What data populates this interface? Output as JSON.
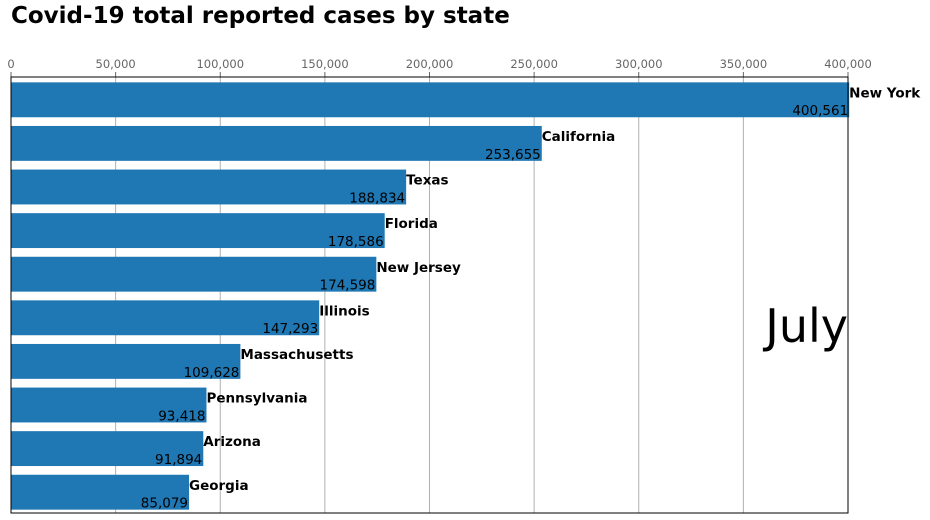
{
  "title": "Covid-19 total reported cases by state",
  "period": "July",
  "chart_data": {
    "type": "bar",
    "orientation": "horizontal",
    "title": "Covid-19 total reported cases by state",
    "categories": [
      "New York",
      "California",
      "Texas",
      "Florida",
      "New Jersey",
      "Illinois",
      "Massachusetts",
      "Pennsylvania",
      "Arizona",
      "Georgia"
    ],
    "values": [
      400561,
      253655,
      188834,
      178586,
      174598,
      147293,
      109628,
      93418,
      91894,
      85079
    ],
    "value_labels": [
      "400,561",
      "253,655",
      "188,834",
      "178,586",
      "174,598",
      "147,293",
      "109,628",
      "93,418",
      "91,894",
      "85,079"
    ],
    "xlim": [
      0,
      400000
    ],
    "x_ticks": [
      0,
      50000,
      100000,
      150000,
      200000,
      250000,
      300000,
      350000,
      400000
    ],
    "x_tick_labels": [
      "0",
      "50,000",
      "100,000",
      "150,000",
      "200,000",
      "250,000",
      "300,000",
      "350,000",
      "400,000"
    ],
    "x_axis_position": "top",
    "grid": "vertical",
    "bar_color": "#1f77b4",
    "xlabel": "",
    "ylabel": ""
  }
}
